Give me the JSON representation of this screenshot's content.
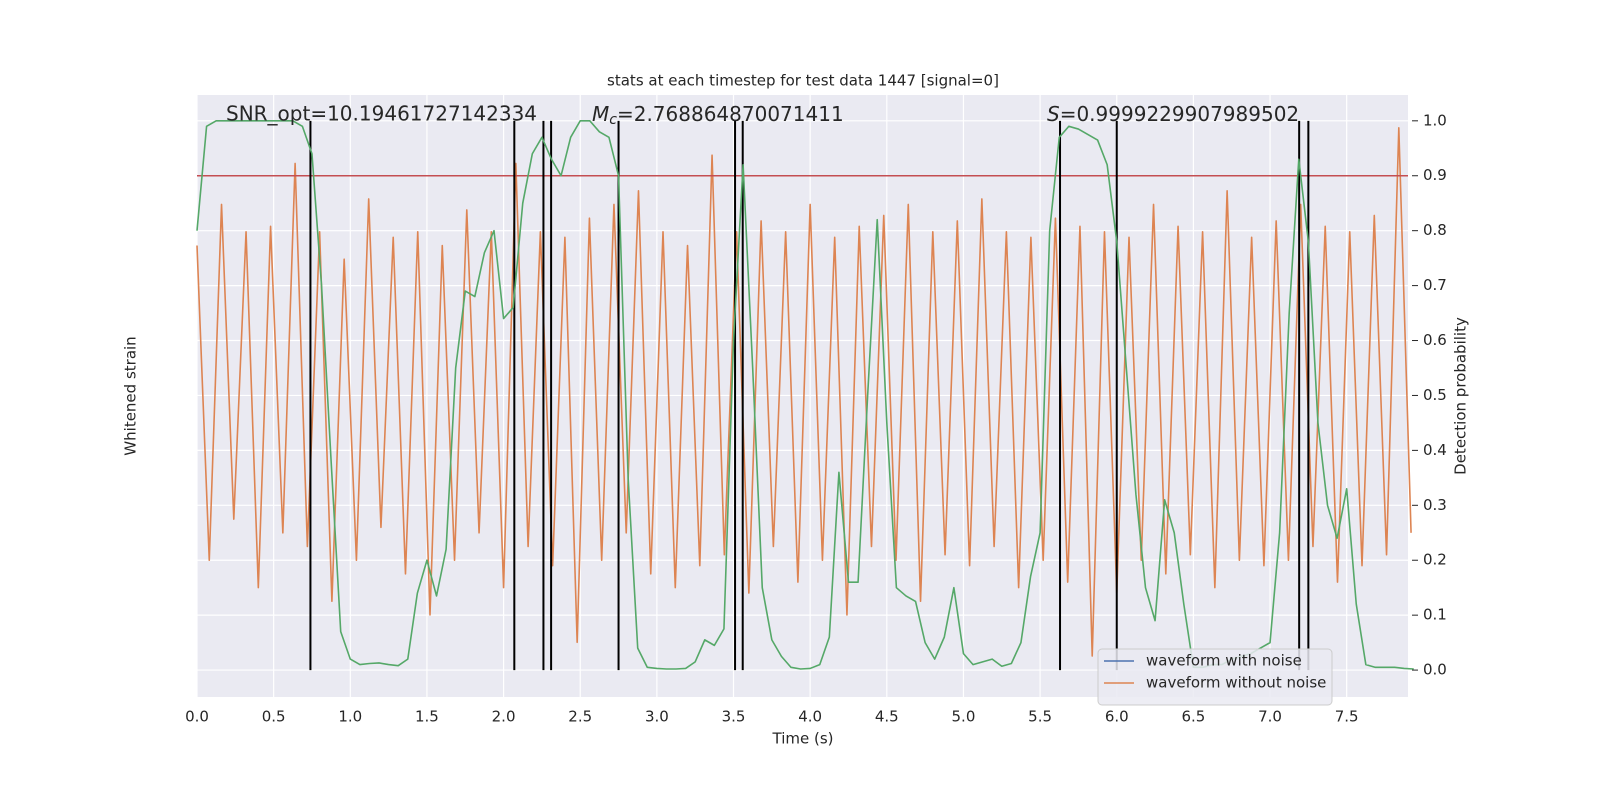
{
  "chart_data": {
    "type": "line",
    "title": "stats at each timestep for test data 1447 [signal=0]",
    "xlabel": "Time (s)",
    "ylabel": "Whitened strain",
    "y2label": "Detection probability",
    "annotations": [
      {
        "text": "SNR_opt=10.19461727142334"
      },
      {
        "symbol": "M",
        "subscript": "c",
        "text": "=2.768864870071411"
      },
      {
        "symbol": "S",
        "text": "=0.9999229907989502"
      }
    ],
    "xlim": [
      0,
      7.9
    ],
    "xticks": [
      {
        "value": 0,
        "label": "0.0"
      },
      0.5,
      {
        "value": 1,
        "label": "1.0"
      },
      1.5,
      {
        "value": 2,
        "label": "2.0"
      },
      2.5,
      {
        "value": 3,
        "label": "3.0"
      },
      3.5,
      {
        "value": 4,
        "label": "4.0"
      },
      4.5,
      {
        "value": 5,
        "label": "5.0"
      },
      5.5,
      {
        "value": 6,
        "label": "6.0"
      },
      6.5,
      {
        "value": 7,
        "label": "7.0"
      },
      7.5
    ],
    "ylim": [
      -1.1,
      1.1
    ],
    "y2lim": [
      -0.049,
      1.047
    ],
    "y2ticks": [
      {
        "value": 0,
        "label": "0.0"
      },
      0.1,
      0.2,
      0.3,
      0.4,
      0.5,
      0.6,
      0.7,
      0.8,
      0.9,
      {
        "value": 1,
        "label": "1.0"
      }
    ],
    "grid": true,
    "legend": "lower right",
    "series": [
      {
        "name": "waveform with noise",
        "color": "#4c72b0",
        "x": [],
        "values": []
      },
      {
        "name": "waveform without noise",
        "color": "#dd8452",
        "x": [
          0,
          0.08,
          0.16,
          0.24,
          0.32,
          0.4,
          0.48,
          0.56,
          0.64,
          0.72,
          0.8,
          0.88,
          0.96,
          1.04,
          1.12,
          1.2,
          1.28,
          1.36,
          1.44,
          1.52,
          1.6,
          1.68,
          1.76,
          1.84,
          1.92,
          2.0,
          2.08,
          2.16,
          2.24,
          2.32,
          2.4,
          2.48,
          2.56,
          2.64,
          2.72,
          2.8,
          2.88,
          2.96,
          3.04,
          3.12,
          3.2,
          3.28,
          3.36,
          3.44,
          3.52,
          3.6,
          3.68,
          3.76,
          3.84,
          3.92,
          4.0,
          4.08,
          4.16,
          4.24,
          4.32,
          4.4,
          4.48,
          4.56,
          4.64,
          4.72,
          4.8,
          4.88,
          4.96,
          5.04,
          5.12,
          5.2,
          5.28,
          5.36,
          5.44,
          5.52,
          5.6,
          5.68,
          5.76,
          5.84,
          5.92,
          6.0,
          6.08,
          6.16,
          6.24,
          6.32,
          6.4,
          6.48,
          6.56,
          6.64,
          6.72,
          6.8,
          6.88,
          6.96,
          7.04,
          7.12,
          7.2,
          7.28,
          7.36,
          7.44,
          7.52,
          7.6,
          7.68,
          7.76,
          7.84,
          7.92
        ],
        "values": [
          0.55,
          -0.6,
          0.7,
          -0.45,
          0.6,
          -0.7,
          0.62,
          -0.5,
          0.85,
          -0.55,
          0.6,
          -0.75,
          0.5,
          -0.6,
          0.72,
          -0.48,
          0.58,
          -0.65,
          0.6,
          -0.8,
          0.55,
          -0.6,
          0.68,
          -0.5,
          0.6,
          -0.7,
          0.85,
          -0.55,
          0.6,
          -0.62,
          0.58,
          -0.9,
          0.65,
          -0.6,
          0.7,
          -0.5,
          0.75,
          -0.65,
          0.6,
          -0.7,
          0.55,
          -0.62,
          0.88,
          -0.58,
          0.6,
          -0.72,
          0.64,
          -0.55,
          0.6,
          -0.68,
          0.7,
          -0.6,
          0.58,
          -0.8,
          0.62,
          -0.55,
          0.66,
          -0.6,
          0.7,
          -0.75,
          0.6,
          -0.58,
          0.64,
          -0.62,
          0.72,
          -0.55,
          0.6,
          -0.7,
          0.58,
          -0.6,
          0.65,
          -0.68,
          0.62,
          -0.95,
          0.6,
          -0.72,
          0.58,
          -0.6,
          0.7,
          -0.65,
          0.62,
          -0.58,
          0.6,
          -0.7,
          0.75,
          -0.6,
          0.58,
          -0.62,
          0.64,
          -0.6,
          0.7,
          -0.55,
          0.62,
          -0.68,
          0.6,
          -0.62,
          0.66,
          -0.58,
          0.98,
          -0.5
        ]
      },
      {
        "color": "#55a868",
        "axis": "y2",
        "x": [
          0,
          0.0625,
          0.125,
          0.1875,
          0.25,
          0.3125,
          0.375,
          0.4375,
          0.5,
          0.5625,
          0.625,
          0.6875,
          0.75,
          0.8125,
          0.875,
          0.9375,
          1.0,
          1.0625,
          1.125,
          1.1875,
          1.25,
          1.3125,
          1.375,
          1.4375,
          1.5,
          1.5625,
          1.625,
          1.6875,
          1.75,
          1.8125,
          1.875,
          1.9375,
          2.0,
          2.0625,
          2.125,
          2.1875,
          2.25,
          2.3125,
          2.375,
          2.4375,
          2.5,
          2.5625,
          2.625,
          2.6875,
          2.75,
          2.8125,
          2.875,
          2.9375,
          3.0,
          3.0625,
          3.125,
          3.1875,
          3.25,
          3.3125,
          3.375,
          3.4375,
          3.5,
          3.5625,
          3.625,
          3.6875,
          3.75,
          3.8125,
          3.875,
          3.9375,
          4.0,
          4.0625,
          4.125,
          4.1875,
          4.25,
          4.3125,
          4.375,
          4.4375,
          4.5,
          4.5625,
          4.625,
          4.6875,
          4.75,
          4.8125,
          4.875,
          4.9375,
          5.0,
          5.0625,
          5.125,
          5.1875,
          5.25,
          5.3125,
          5.375,
          5.4375,
          5.5,
          5.5625,
          5.625,
          5.6875,
          5.75,
          5.8125,
          5.875,
          5.9375,
          6.0,
          6.0625,
          6.125,
          6.1875,
          6.25,
          6.3125,
          6.375,
          6.4375,
          6.5,
          6.5625,
          6.625,
          6.6875,
          6.75,
          6.8125,
          6.875,
          6.9375,
          7.0,
          7.0625,
          7.125,
          7.1875,
          7.25,
          7.3125,
          7.375,
          7.4375,
          7.5,
          7.5625,
          7.625,
          7.6875,
          7.75,
          7.8125,
          7.875,
          7.9375
        ],
        "values": [
          0.8,
          0.99,
          1.0,
          1.0,
          1.0,
          1.0,
          1.0,
          1.0,
          1.0,
          1.0,
          1.0,
          0.99,
          0.94,
          0.7,
          0.38,
          0.07,
          0.02,
          0.01,
          0.012,
          0.013,
          0.01,
          0.008,
          0.02,
          0.14,
          0.2,
          0.135,
          0.22,
          0.55,
          0.69,
          0.68,
          0.76,
          0.8,
          0.64,
          0.66,
          0.85,
          0.94,
          0.97,
          0.93,
          0.9,
          0.97,
          1.0,
          1.0,
          0.98,
          0.97,
          0.9,
          0.35,
          0.04,
          0.005,
          0.003,
          0.002,
          0.002,
          0.003,
          0.015,
          0.055,
          0.045,
          0.075,
          0.6,
          0.92,
          0.55,
          0.15,
          0.055,
          0.025,
          0.005,
          0.002,
          0.003,
          0.01,
          0.06,
          0.36,
          0.16,
          0.16,
          0.5,
          0.82,
          0.45,
          0.15,
          0.135,
          0.125,
          0.05,
          0.02,
          0.06,
          0.15,
          0.03,
          0.01,
          0.015,
          0.02,
          0.007,
          0.012,
          0.05,
          0.17,
          0.25,
          0.8,
          0.97,
          0.99,
          0.985,
          0.975,
          0.965,
          0.92,
          0.78,
          0.55,
          0.32,
          0.15,
          0.09,
          0.31,
          0.25,
          0.12,
          0.005,
          0.005,
          0.01,
          0.01,
          0.02,
          0.025,
          0.03,
          0.04,
          0.05,
          0.25,
          0.65,
          0.93,
          0.78,
          0.45,
          0.3,
          0.24,
          0.33,
          0.12,
          0.01,
          0.005,
          0.005,
          0.005,
          0.003,
          0.002
        ]
      }
    ],
    "threshold": {
      "value": 0.9,
      "color": "#c44e52",
      "axis": "y2"
    },
    "events": {
      "x": [
        0.74,
        2.07,
        2.26,
        2.31,
        2.75,
        3.51,
        3.56,
        5.63,
        6.0,
        7.19,
        7.25
      ],
      "color": "#000000",
      "axis": "y2",
      "span": [
        0,
        1
      ]
    }
  }
}
